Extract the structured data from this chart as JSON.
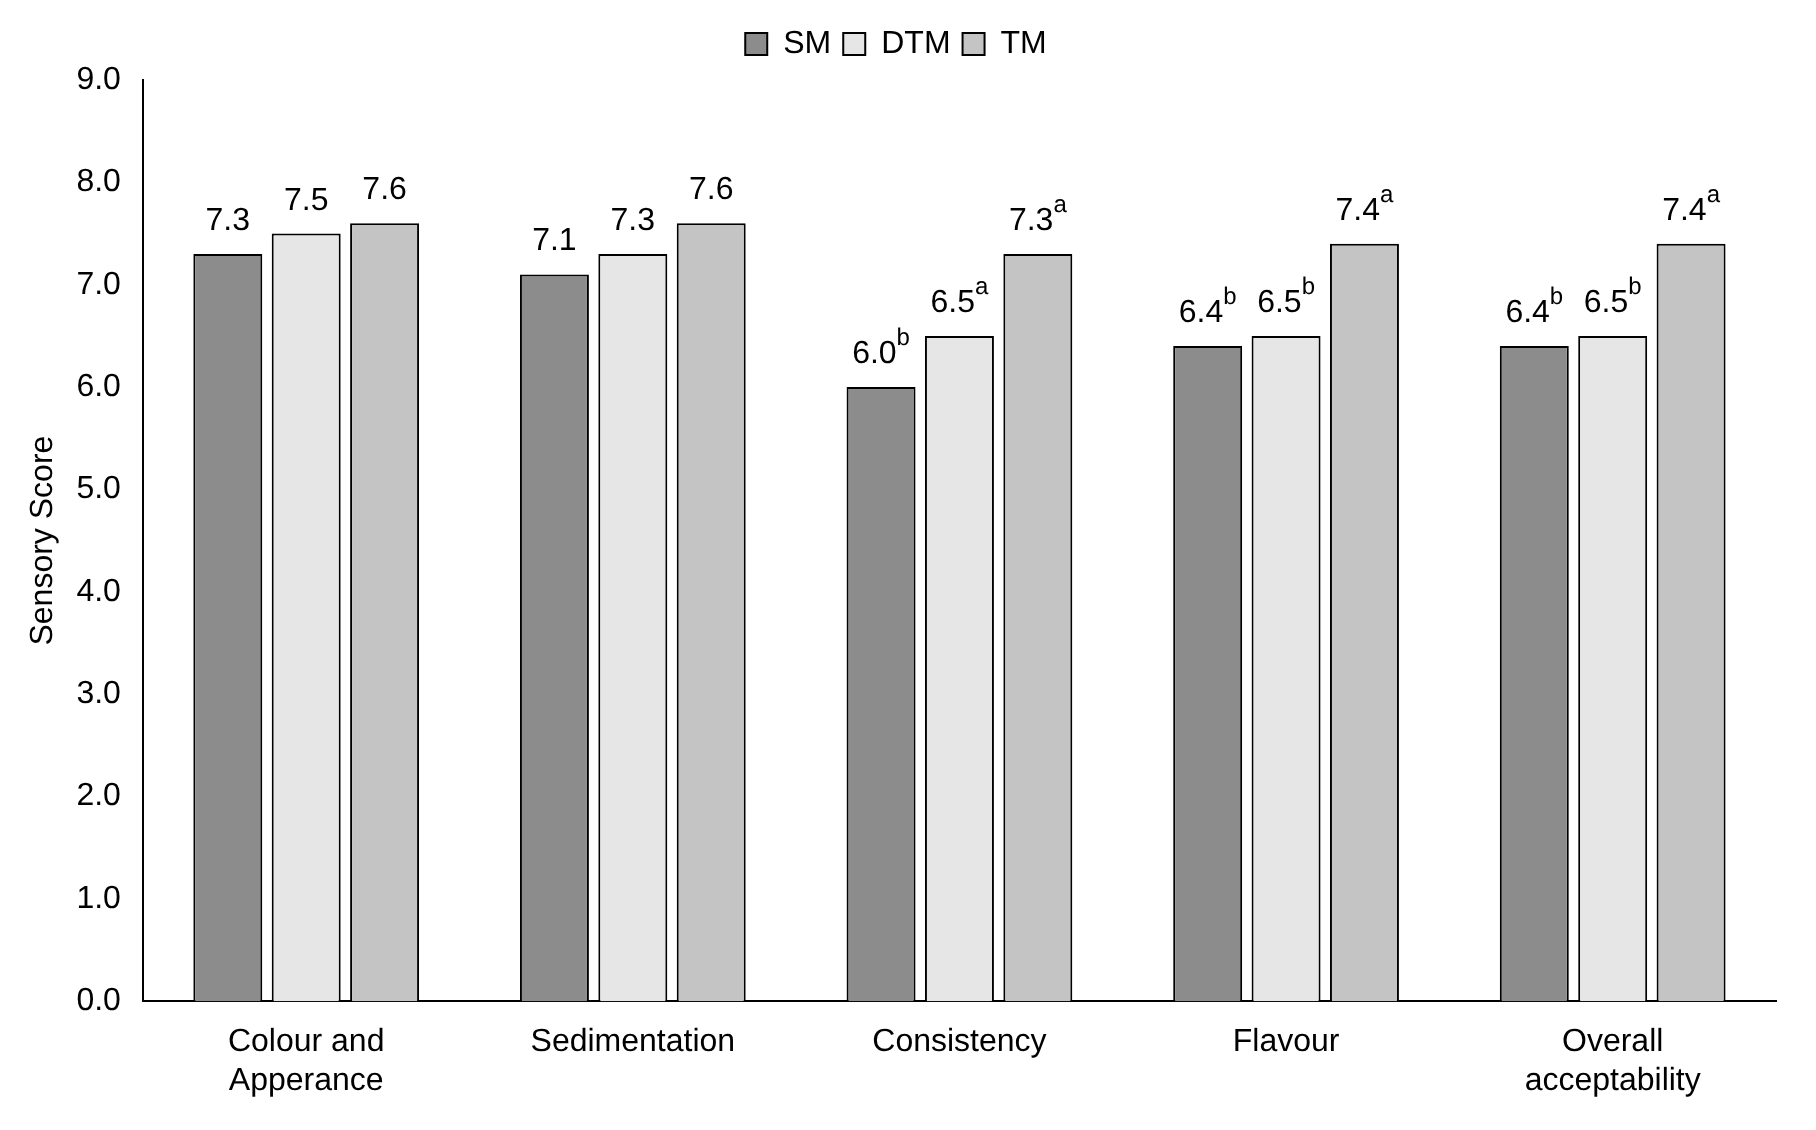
{
  "chart_data": {
    "type": "bar",
    "ylabel": "Sensory Score",
    "categories": [
      "Colour and Apperance",
      "Sedimentation",
      "Consistency",
      "Flavour",
      "Overall acceptability"
    ],
    "series": [
      {
        "name": "SM",
        "color": "#8c8c8c",
        "values": [
          7.3,
          7.1,
          6.0,
          6.4,
          6.4
        ],
        "value_labels": [
          "7.3",
          "7.1",
          "6.0$^{b}$",
          "6.4$^{b}$",
          "6.4$^{b}$"
        ]
      },
      {
        "name": "DTM",
        "color": "#e6e6e6",
        "values": [
          7.5,
          7.3,
          6.5,
          6.5,
          6.5
        ],
        "value_labels": [
          "7.5",
          "7.3",
          "6.5$^{a}$",
          "6.5$^{b}$",
          "6.5$^{b}$"
        ]
      },
      {
        "name": "TM",
        "color": "#c4c4c4",
        "values": [
          7.6,
          7.6,
          7.3,
          7.4,
          7.4
        ],
        "value_labels": [
          "7.6",
          "7.6",
          "7.3$^{a}$",
          "7.4$^{a}$",
          "7.4$^{a}$"
        ]
      }
    ],
    "ylim": [
      0,
      9
    ],
    "yticks": [
      {
        "value": 0,
        "label": "0.0"
      },
      {
        "value": 1,
        "label": "1.0"
      },
      {
        "value": 2,
        "label": "2.0"
      },
      {
        "value": 3,
        "label": "3.0"
      },
      {
        "value": 4,
        "label": "4.0"
      },
      {
        "value": 5,
        "label": "5.0"
      },
      {
        "value": 6,
        "label": "6.0"
      },
      {
        "value": 7,
        "label": "7.0"
      },
      {
        "value": 8,
        "label": "8.0"
      },
      {
        "value": 9,
        "label": "9.0"
      }
    ],
    "grid": false,
    "legend": "top"
  }
}
